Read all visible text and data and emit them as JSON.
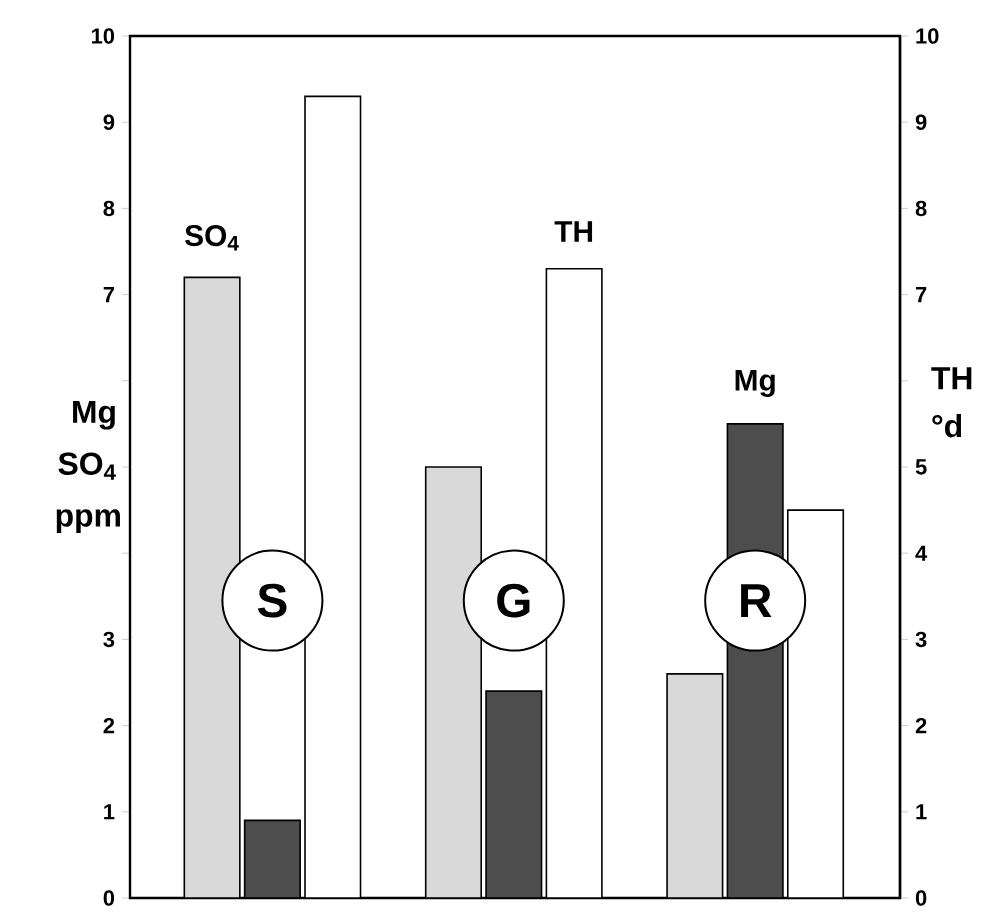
{
  "chart_data": {
    "type": "bar",
    "categories": [
      "S",
      "G",
      "R"
    ],
    "series": [
      {
        "name": "SO$_{4}$",
        "color": "#d9d9d9",
        "values": [
          7.2,
          5.0,
          2.6
        ]
      },
      {
        "name": "Mg",
        "color": "#4d4d4d",
        "values": [
          0.9,
          2.4,
          5.5
        ]
      },
      {
        "name": "TH",
        "color": "#ffffff",
        "values": [
          9.3,
          7.3,
          4.5
        ],
        "axis": "y2"
      }
    ],
    "ylabel": "Mg SO$_{4}$ ppm",
    "y2label": "TH °d",
    "ylim": [
      0,
      10
    ],
    "yticks": [
      0,
      1,
      2,
      3,
      {
        "value": 4,
        "label": null
      },
      {
        "value": 5,
        "label": null
      },
      {
        "value": 6,
        "label": null
      },
      7,
      8,
      9,
      10
    ],
    "y2lim": [
      0,
      10
    ],
    "y2ticks": [
      0,
      1,
      2,
      3,
      4,
      5,
      {
        "value": 6,
        "label": null
      },
      7,
      8,
      9,
      10
    ]
  }
}
